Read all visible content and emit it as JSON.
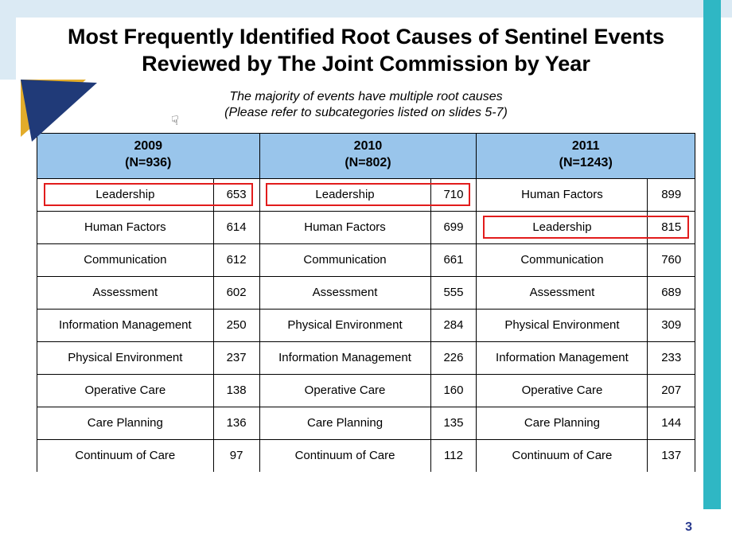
{
  "slide": {
    "title_line1": "Most Frequently Identified Root Causes of Sentinel Events",
    "title_line2": "Reviewed by The Joint Commission by Year",
    "subtitle_line1": "The majority of events have multiple root causes",
    "subtitle_line2": "(Please refer to subcategories listed on slides 5-7)",
    "page_number": "3"
  },
  "colors": {
    "header_fill": "#99c5eb",
    "border": "#000000",
    "highlight_border": "#e21c1c",
    "top_band": "#dbeaf4",
    "right_bar": "#2fb7c4",
    "badge_navy": "#203a78",
    "badge_gold": "#e3ac2a",
    "pagenum": "#2a3b8f",
    "background": "#ffffff"
  },
  "typography": {
    "title_fontsize_pt": 20,
    "subtitle_fontsize_pt": 12,
    "header_fontsize_pt": 12,
    "cell_fontsize_pt": 11,
    "font_family": "Arial"
  },
  "table": {
    "type": "table",
    "column_widths_pct": [
      26.8,
      7.0,
      26.0,
      7.0,
      26.0,
      7.2
    ],
    "header": {
      "col0_year": "2009",
      "col0_n": "(N=936)",
      "col1_year": "2010",
      "col1_n": "(N=802)",
      "col2_year": "2011",
      "col2_n": "(N=1243)"
    },
    "rows": [
      {
        "a_lbl": "Leadership",
        "a_val": "653",
        "b_lbl": "Leadership",
        "b_val": "710",
        "c_lbl": "Human Factors",
        "c_val": "899"
      },
      {
        "a_lbl": "Human Factors",
        "a_val": "614",
        "b_lbl": "Human Factors",
        "b_val": "699",
        "c_lbl": "Leadership",
        "c_val": "815"
      },
      {
        "a_lbl": "Communication",
        "a_val": "612",
        "b_lbl": "Communication",
        "b_val": "661",
        "c_lbl": "Communication",
        "c_val": "760"
      },
      {
        "a_lbl": "Assessment",
        "a_val": "602",
        "b_lbl": "Assessment",
        "b_val": "555",
        "c_lbl": "Assessment",
        "c_val": "689"
      },
      {
        "a_lbl": "Information Management",
        "a_val": "250",
        "b_lbl": "Physical Environment",
        "b_val": "284",
        "c_lbl": "Physical Environment",
        "c_val": "309"
      },
      {
        "a_lbl": "Physical Environment",
        "a_val": "237",
        "b_lbl": "Information Management",
        "b_val": "226",
        "c_lbl": "Information Management",
        "c_val": "233"
      },
      {
        "a_lbl": "Operative Care",
        "a_val": "138",
        "b_lbl": "Operative Care",
        "b_val": "160",
        "c_lbl": "Operative Care",
        "c_val": "207"
      },
      {
        "a_lbl": "Care Planning",
        "a_val": "136",
        "b_lbl": "Care Planning",
        "b_val": "135",
        "c_lbl": "Care Planning",
        "c_val": "144"
      },
      {
        "a_lbl": "Continuum of Care",
        "a_val": "97",
        "b_lbl": "Continuum of Care",
        "b_val": "112",
        "c_lbl": "Continuum of Care",
        "c_val": "137"
      }
    ],
    "highlights": [
      {
        "row": 0,
        "group": 0
      },
      {
        "row": 0,
        "group": 1
      },
      {
        "row": 1,
        "group": 2
      }
    ]
  },
  "icons": {
    "cursor": "hand-cursor"
  }
}
